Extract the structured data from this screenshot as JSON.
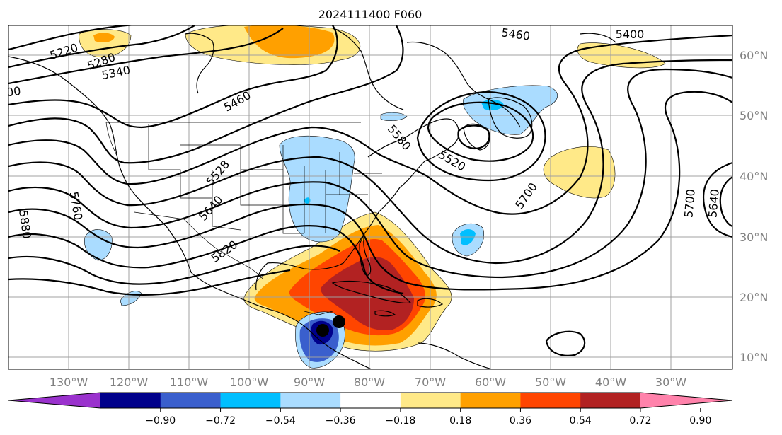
{
  "title": "2024111400 F060",
  "longitude_labels": [
    "130°W",
    "120°W",
    "110°W",
    "100°W",
    "90°W",
    "80°W",
    "70°W",
    "60°W",
    "50°W",
    "40°W",
    "30°W"
  ],
  "latitude_labels": [
    "10°N",
    "20°N",
    "30°N",
    "40°N",
    "50°N",
    "60°N"
  ],
  "contour_labels": [
    "5220",
    "5280",
    "5340",
    "5460",
    "5400",
    "5460",
    "5580",
    "5520",
    "5700",
    "5528",
    "5640",
    "5760",
    "5820",
    "5880",
    "5700",
    "5640",
    "00"
  ],
  "colorbar": {
    "colors": [
      "#9a32cd",
      "#00008b",
      "#3a5fcd",
      "#00bfff",
      "#aadcff",
      "#ffffff",
      "#ffe988",
      "#ffa000",
      "#ff4500",
      "#b22222",
      "#ff82ab"
    ],
    "tick_labels": [
      "−0.90",
      "−0.72",
      "−0.54",
      "−0.36",
      "−0.18",
      "0.18",
      "0.36",
      "0.54",
      "0.72",
      "0.90"
    ]
  },
  "colors": {
    "contour": "#000000",
    "gridline": "#a0a0a0",
    "tick_label": "#808080"
  }
}
